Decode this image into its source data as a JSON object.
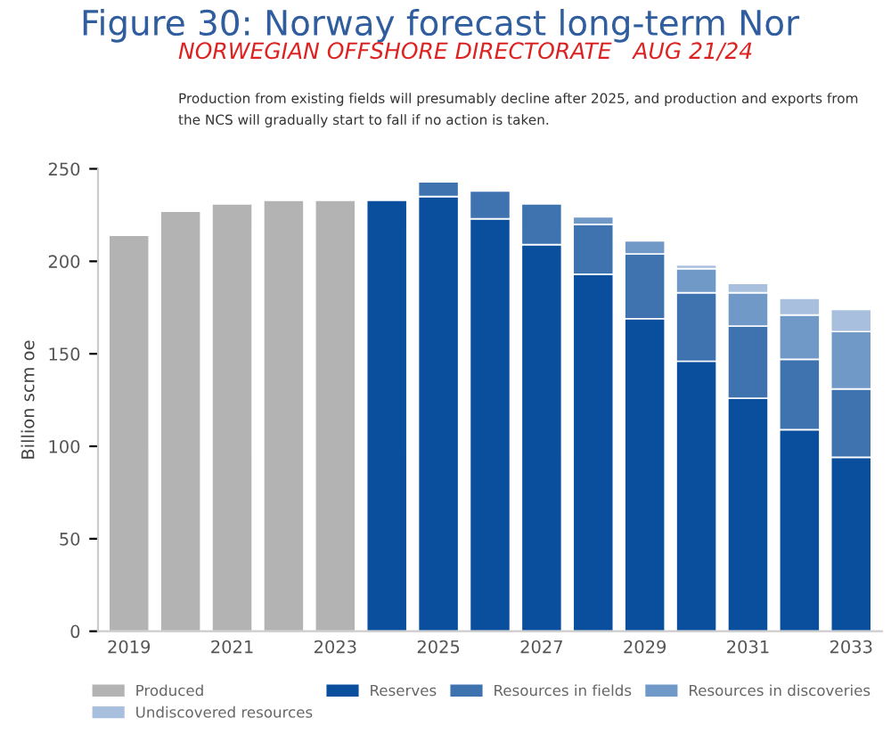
{
  "chart_data": {
    "type": "bar",
    "title": "Figure 30: Norway forecast long-term Nor",
    "subtitle": "Production from existing fields will presumably decline after 2025, and production and exports from\nthe NCS will gradually start to fall if no action is taken.",
    "annotations": [
      "NORWEGIAN OFFSHORE DIRECTORATE   AUG 21/24"
    ],
    "ylabel": "Billion scm oe",
    "categories": [
      "2019",
      null,
      "2021",
      null,
      "2023",
      null,
      "2025",
      null,
      "2027",
      null,
      "2029",
      null,
      "2031",
      null,
      "2033"
    ],
    "stacked": true,
    "series": [
      {
        "name": "Produced",
        "color": "#b3b3b3",
        "values": [
          214,
          227,
          231,
          233,
          233,
          null,
          null,
          null,
          null,
          null,
          null,
          null,
          null,
          null,
          null
        ]
      },
      {
        "name": "Reserves",
        "color": "#0a4f9e",
        "values": [
          null,
          null,
          null,
          null,
          null,
          233,
          235,
          223,
          209,
          193,
          169,
          146,
          126,
          109,
          94
        ]
      },
      {
        "name": "Resources in fields",
        "color": "#3f73b0",
        "values": [
          null,
          null,
          null,
          null,
          null,
          null,
          8,
          15,
          22,
          27,
          35,
          37,
          39,
          38,
          37
        ]
      },
      {
        "name": "Resources in discoveries",
        "color": "#7099c8",
        "values": [
          null,
          null,
          null,
          null,
          null,
          null,
          null,
          null,
          null,
          4,
          7,
          13,
          18,
          24,
          31
        ]
      },
      {
        "name": "Undiscovered resources",
        "color": "#a8c0de",
        "values": [
          null,
          null,
          null,
          null,
          null,
          null,
          null,
          null,
          null,
          null,
          null,
          2,
          5,
          9,
          12
        ]
      }
    ],
    "ylim": [
      0,
      250
    ],
    "yticks": [
      0,
      50,
      100,
      150,
      200,
      250
    ],
    "grid": false,
    "legend": "bottom"
  }
}
